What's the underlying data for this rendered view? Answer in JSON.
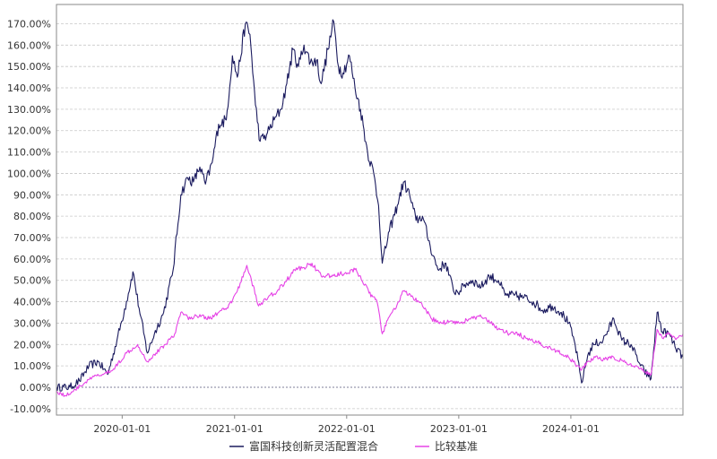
{
  "chart_data": {
    "type": "line",
    "title": "",
    "xlabel": "",
    "ylabel": "",
    "x_range": [
      "2019-06-01",
      "2024-12-31"
    ],
    "x_ticks": [
      "2020-01-01",
      "2021-01-01",
      "2022-01-01",
      "2023-01-01",
      "2024-01-01"
    ],
    "ylim": [
      -0.13,
      1.79
    ],
    "y_ticks": [
      "-10.00%",
      "0.00%",
      "10.00%",
      "20.00%",
      "30.00%",
      "40.00%",
      "50.00%",
      "60.00%",
      "70.00%",
      "80.00%",
      "90.00%",
      "100.00%",
      "110.00%",
      "120.00%",
      "130.00%",
      "140.00%",
      "150.00%",
      "160.00%",
      "170.00%"
    ],
    "y_tick_values": [
      -0.1,
      0.0,
      0.1,
      0.2,
      0.3,
      0.4,
      0.5,
      0.6,
      0.7,
      0.8,
      0.9,
      1.0,
      1.1,
      1.2,
      1.3,
      1.4,
      1.5,
      1.6,
      1.7
    ],
    "grid": "horizontal-dashed",
    "legend_position": "bottom",
    "series": [
      {
        "name": "富国科技创新灵活配置混合",
        "color": "#1a1a5e",
        "points": [
          [
            "2019-06-01",
            0.0
          ],
          [
            "2019-07-15",
            0.0
          ],
          [
            "2019-08-15",
            0.03
          ],
          [
            "2019-09-15",
            0.1
          ],
          [
            "2019-10-15",
            0.12
          ],
          [
            "2019-11-15",
            0.06
          ],
          [
            "2019-12-15",
            0.22
          ],
          [
            "2020-01-15",
            0.4
          ],
          [
            "2020-02-05",
            0.54
          ],
          [
            "2020-02-25",
            0.37
          ],
          [
            "2020-03-23",
            0.16
          ],
          [
            "2020-04-15",
            0.25
          ],
          [
            "2020-05-15",
            0.35
          ],
          [
            "2020-06-15",
            0.55
          ],
          [
            "2020-07-10",
            0.9
          ],
          [
            "2020-08-01",
            0.98
          ],
          [
            "2020-08-20",
            0.96
          ],
          [
            "2020-09-10",
            1.03
          ],
          [
            "2020-09-28",
            0.95
          ],
          [
            "2020-10-20",
            1.05
          ],
          [
            "2020-11-10",
            1.23
          ],
          [
            "2020-12-05",
            1.25
          ],
          [
            "2020-12-25",
            1.55
          ],
          [
            "2021-01-10",
            1.45
          ],
          [
            "2021-02-05",
            1.7
          ],
          [
            "2021-02-20",
            1.65
          ],
          [
            "2021-03-10",
            1.32
          ],
          [
            "2021-03-25",
            1.15
          ],
          [
            "2021-04-15",
            1.18
          ],
          [
            "2021-05-10",
            1.25
          ],
          [
            "2021-06-01",
            1.3
          ],
          [
            "2021-06-20",
            1.42
          ],
          [
            "2021-07-10",
            1.58
          ],
          [
            "2021-07-28",
            1.5
          ],
          [
            "2021-08-15",
            1.6
          ],
          [
            "2021-09-05",
            1.52
          ],
          [
            "2021-09-25",
            1.53
          ],
          [
            "2021-10-10",
            1.42
          ],
          [
            "2021-11-01",
            1.58
          ],
          [
            "2021-11-20",
            1.71
          ],
          [
            "2021-12-05",
            1.5
          ],
          [
            "2021-12-20",
            1.47
          ],
          [
            "2022-01-10",
            1.55
          ],
          [
            "2022-01-28",
            1.4
          ],
          [
            "2022-02-15",
            1.3
          ],
          [
            "2022-03-10",
            1.1
          ],
          [
            "2022-03-30",
            1.0
          ],
          [
            "2022-04-15",
            0.85
          ],
          [
            "2022-04-27",
            0.58
          ],
          [
            "2022-05-20",
            0.73
          ],
          [
            "2022-06-15",
            0.85
          ],
          [
            "2022-07-05",
            0.96
          ],
          [
            "2022-07-25",
            0.9
          ],
          [
            "2022-08-15",
            0.78
          ],
          [
            "2022-09-05",
            0.8
          ],
          [
            "2022-09-30",
            0.66
          ],
          [
            "2022-10-25",
            0.55
          ],
          [
            "2022-11-20",
            0.58
          ],
          [
            "2022-12-15",
            0.45
          ],
          [
            "2023-01-05",
            0.45
          ],
          [
            "2023-01-20",
            0.48
          ],
          [
            "2023-02-15",
            0.5
          ],
          [
            "2023-03-15",
            0.47
          ],
          [
            "2023-04-10",
            0.52
          ],
          [
            "2023-05-10",
            0.5
          ],
          [
            "2023-06-01",
            0.43
          ],
          [
            "2023-07-01",
            0.43
          ],
          [
            "2023-08-01",
            0.42
          ],
          [
            "2023-09-01",
            0.4
          ],
          [
            "2023-10-01",
            0.36
          ],
          [
            "2023-11-01",
            0.38
          ],
          [
            "2023-12-01",
            0.35
          ],
          [
            "2023-12-25",
            0.3
          ],
          [
            "2024-01-15",
            0.2
          ],
          [
            "2024-02-05",
            0.02
          ],
          [
            "2024-02-25",
            0.15
          ],
          [
            "2024-03-15",
            0.2
          ],
          [
            "2024-04-15",
            0.22
          ],
          [
            "2024-05-20",
            0.32
          ],
          [
            "2024-06-15",
            0.22
          ],
          [
            "2024-07-15",
            0.2
          ],
          [
            "2024-08-15",
            0.1
          ],
          [
            "2024-09-10",
            0.05
          ],
          [
            "2024-09-18",
            0.04
          ],
          [
            "2024-10-08",
            0.35
          ],
          [
            "2024-10-25",
            0.26
          ],
          [
            "2024-11-15",
            0.25
          ],
          [
            "2024-12-05",
            0.19
          ],
          [
            "2024-12-31",
            0.14
          ]
        ]
      },
      {
        "name": "比较基准",
        "color": "#e642e6",
        "points": [
          [
            "2019-06-01",
            -0.02
          ],
          [
            "2019-07-01",
            -0.04
          ],
          [
            "2019-08-01",
            -0.01
          ],
          [
            "2019-09-01",
            0.02
          ],
          [
            "2019-10-01",
            0.05
          ],
          [
            "2019-11-01",
            0.06
          ],
          [
            "2019-12-01",
            0.08
          ],
          [
            "2020-01-15",
            0.16
          ],
          [
            "2020-02-20",
            0.2
          ],
          [
            "2020-03-23",
            0.12
          ],
          [
            "2020-04-20",
            0.16
          ],
          [
            "2020-05-20",
            0.2
          ],
          [
            "2020-06-20",
            0.25
          ],
          [
            "2020-07-10",
            0.35
          ],
          [
            "2020-08-10",
            0.32
          ],
          [
            "2020-09-10",
            0.34
          ],
          [
            "2020-10-10",
            0.32
          ],
          [
            "2020-11-10",
            0.35
          ],
          [
            "2020-12-10",
            0.37
          ],
          [
            "2021-01-10",
            0.45
          ],
          [
            "2021-02-10",
            0.57
          ],
          [
            "2021-02-25",
            0.5
          ],
          [
            "2021-03-20",
            0.38
          ],
          [
            "2021-04-20",
            0.42
          ],
          [
            "2021-05-20",
            0.45
          ],
          [
            "2021-06-20",
            0.5
          ],
          [
            "2021-07-15",
            0.55
          ],
          [
            "2021-08-15",
            0.56
          ],
          [
            "2021-09-10",
            0.58
          ],
          [
            "2021-10-10",
            0.52
          ],
          [
            "2021-11-10",
            0.52
          ],
          [
            "2021-12-10",
            0.53
          ],
          [
            "2022-01-01",
            0.53
          ],
          [
            "2022-01-28",
            0.55
          ],
          [
            "2022-02-15",
            0.52
          ],
          [
            "2022-03-15",
            0.44
          ],
          [
            "2022-04-10",
            0.4
          ],
          [
            "2022-04-27",
            0.25
          ],
          [
            "2022-05-20",
            0.33
          ],
          [
            "2022-06-20",
            0.4
          ],
          [
            "2022-07-05",
            0.45
          ],
          [
            "2022-08-05",
            0.42
          ],
          [
            "2022-09-05",
            0.38
          ],
          [
            "2022-10-05",
            0.32
          ],
          [
            "2022-11-05",
            0.3
          ],
          [
            "2022-12-05",
            0.31
          ],
          [
            "2023-01-05",
            0.3
          ],
          [
            "2023-02-05",
            0.32
          ],
          [
            "2023-03-15",
            0.33
          ],
          [
            "2023-04-15",
            0.3
          ],
          [
            "2023-05-15",
            0.27
          ],
          [
            "2023-06-15",
            0.25
          ],
          [
            "2023-07-15",
            0.25
          ],
          [
            "2023-08-15",
            0.22
          ],
          [
            "2023-09-15",
            0.21
          ],
          [
            "2023-10-15",
            0.19
          ],
          [
            "2023-11-15",
            0.17
          ],
          [
            "2023-12-15",
            0.15
          ],
          [
            "2024-01-15",
            0.11
          ],
          [
            "2024-02-05",
            0.08
          ],
          [
            "2024-02-25",
            0.12
          ],
          [
            "2024-03-20",
            0.14
          ],
          [
            "2024-04-20",
            0.13
          ],
          [
            "2024-05-20",
            0.14
          ],
          [
            "2024-06-20",
            0.12
          ],
          [
            "2024-07-20",
            0.1
          ],
          [
            "2024-08-20",
            0.08
          ],
          [
            "2024-09-18",
            0.06
          ],
          [
            "2024-10-08",
            0.27
          ],
          [
            "2024-10-25",
            0.23
          ],
          [
            "2024-11-15",
            0.25
          ],
          [
            "2024-12-05",
            0.23
          ],
          [
            "2024-12-31",
            0.25
          ]
        ]
      }
    ]
  }
}
